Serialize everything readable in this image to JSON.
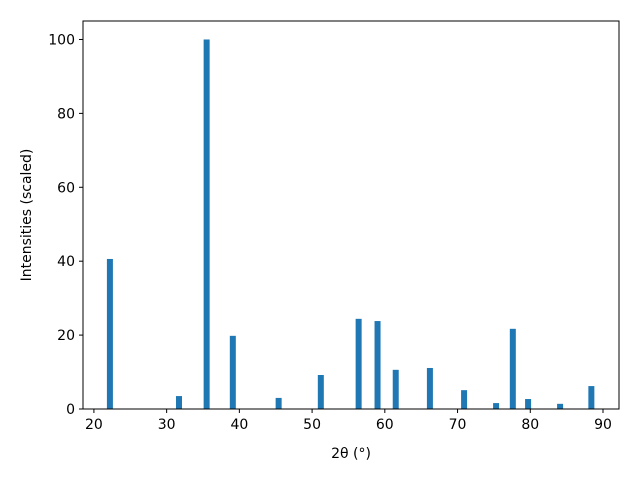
{
  "chart_data": {
    "type": "bar",
    "xlabel": "2θ (°)",
    "ylabel": "Intensities (scaled)",
    "x": [
      22.2,
      31.7,
      35.5,
      39.1,
      45.4,
      51.2,
      56.4,
      59.0,
      61.5,
      66.2,
      70.9,
      75.3,
      77.6,
      79.7,
      84.1,
      88.4
    ],
    "values": [
      40.6,
      3.5,
      100,
      19.8,
      3.0,
      9.2,
      24.4,
      23.8,
      10.6,
      11.1,
      5.1,
      1.6,
      21.7,
      2.7,
      1.4,
      6.2
    ],
    "color": "#1f77b4",
    "xlim": [
      18.5,
      92.2
    ],
    "xticks": [
      20,
      30,
      40,
      50,
      60,
      70,
      80,
      90
    ],
    "ylim": [
      0,
      105
    ],
    "yticks": [
      0,
      20,
      40,
      60,
      80,
      100
    ]
  }
}
